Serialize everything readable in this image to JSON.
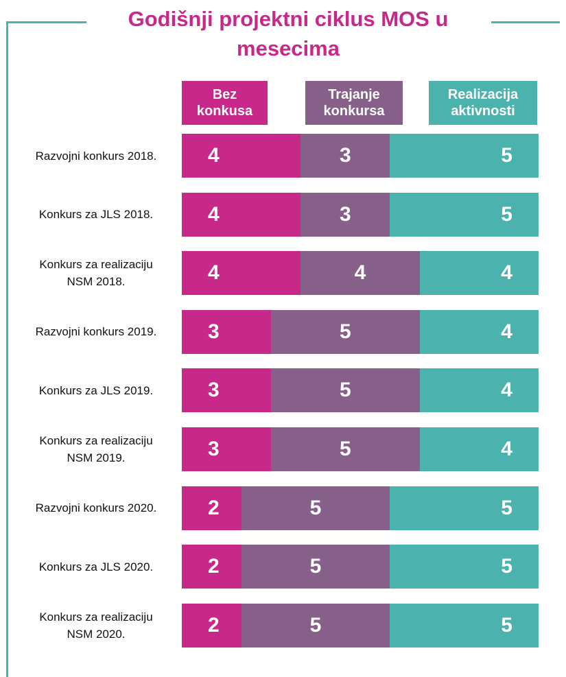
{
  "chart_data": {
    "type": "stacked-bar-horizontal",
    "title": "Godišnji projektni ciklus MOS u mesecima",
    "categories": [
      "Razvojni konkurs 2018.",
      "Konkurs za JLS 2018.",
      "Konkurs za realizaciju NSM 2018.",
      "Razvojni konkurs 2019.",
      "Konkurs za JLS 2019.",
      "Konkurs za realizaciju NSM 2019.",
      "Razvojni konkurs 2020.",
      "Konkurs za JLS 2020.",
      "Konkurs za realizaciju NSM 2020."
    ],
    "series": [
      {
        "name": "Bez konkusa",
        "color": "#c8288a",
        "values": [
          4,
          4,
          4,
          3,
          3,
          3,
          2,
          2,
          2
        ]
      },
      {
        "name": "Trajanje konkursa",
        "color": "#87608a",
        "values": [
          3,
          3,
          4,
          5,
          5,
          5,
          5,
          5,
          5
        ]
      },
      {
        "name": "Realizacija aktivnosti",
        "color": "#4bb2ae",
        "values": [
          5,
          5,
          4,
          4,
          4,
          4,
          5,
          5,
          5
        ]
      }
    ]
  }
}
